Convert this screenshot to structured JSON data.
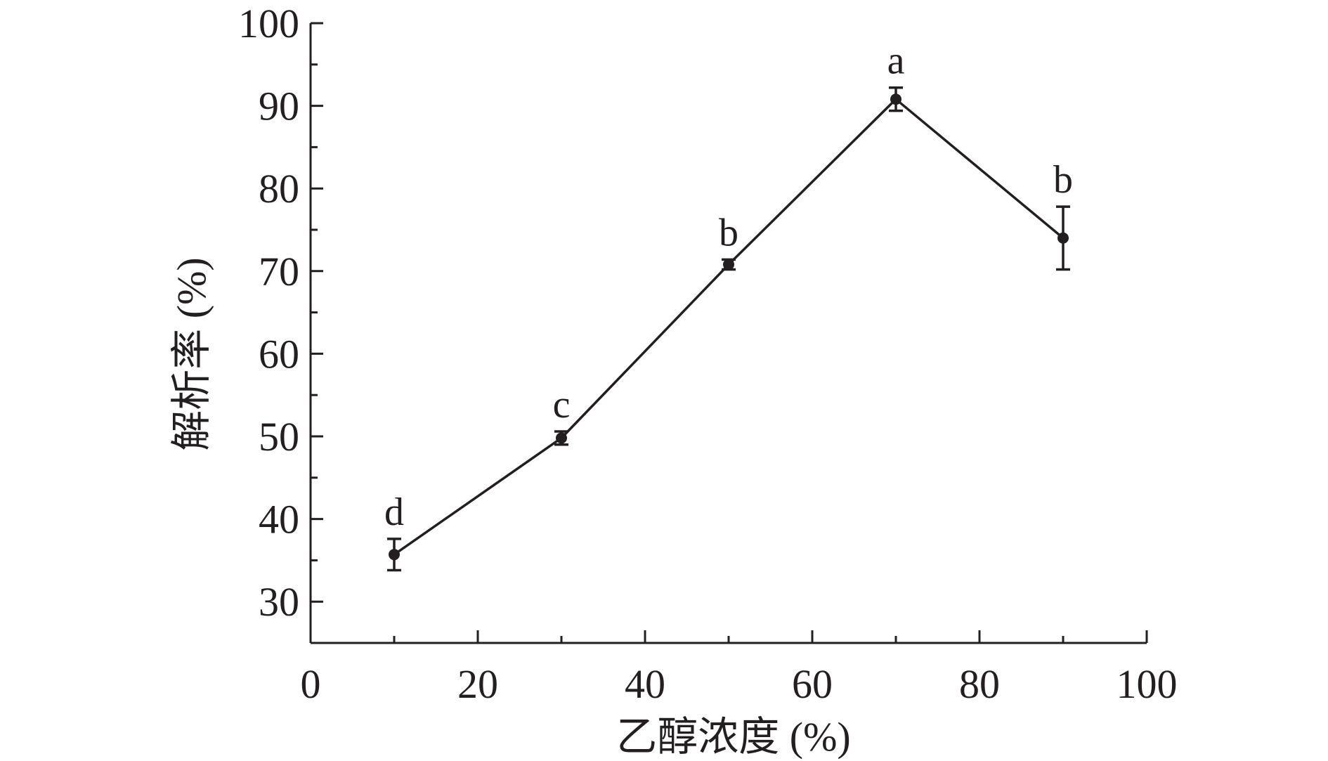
{
  "chart_data": {
    "type": "line",
    "title": "",
    "xlabel": "乙醇浓度 (%)",
    "ylabel": "解析率 (%)",
    "xlim": [
      0,
      100
    ],
    "ylim": [
      25,
      100
    ],
    "x_ticks": [
      0,
      20,
      40,
      60,
      80,
      100
    ],
    "y_ticks": [
      30,
      40,
      50,
      60,
      70,
      80,
      90,
      100
    ],
    "grid": false,
    "legend": "none",
    "color": "#231f20",
    "series": [
      {
        "x": [
          10,
          30,
          50,
          70,
          90
        ],
        "y": [
          35.7,
          49.8,
          70.8,
          90.8,
          74.0
        ],
        "error": [
          1.9,
          0.8,
          0.6,
          1.4,
          3.8
        ],
        "significance": [
          "d",
          "c",
          "b",
          "a",
          "b"
        ]
      }
    ]
  }
}
